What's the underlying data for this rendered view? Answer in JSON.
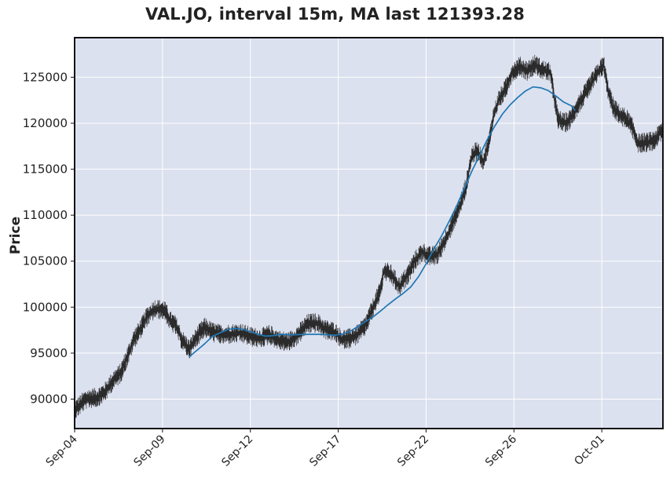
{
  "chart_data": {
    "type": "line",
    "title": "VAL.JO, interval 15m, MA last 121393.28",
    "ylabel": "Price",
    "xlabel": "",
    "ylim": [
      86800,
      129300
    ],
    "yticks": [
      90000,
      95000,
      100000,
      105000,
      110000,
      115000,
      120000,
      125000
    ],
    "xticks": [
      "Sep-04",
      "Sep-09",
      "Sep-12",
      "Sep-17",
      "Sep-22",
      "Sep-26",
      "Oct-01"
    ],
    "grid": true,
    "background": "#dce1ef",
    "price_color": "#2b2b2b",
    "ma_color": "#1f77b4",
    "price_series": {
      "name": "",
      "anchors": [
        [
          0,
          88800
        ],
        [
          6,
          90000
        ],
        [
          12,
          90200
        ],
        [
          16,
          90800
        ],
        [
          20,
          92000
        ],
        [
          24,
          92800
        ],
        [
          28,
          94800
        ],
        [
          31,
          96500
        ],
        [
          35,
          97800
        ],
        [
          38,
          99000
        ],
        [
          42,
          99800
        ],
        [
          47,
          99700
        ],
        [
          50,
          98500
        ],
        [
          53,
          98000
        ],
        [
          56,
          96500
        ],
        [
          60,
          95400
        ],
        [
          64,
          96800
        ],
        [
          68,
          97800
        ],
        [
          72,
          97300
        ],
        [
          77,
          97000
        ],
        [
          82,
          97100
        ],
        [
          87,
          97200
        ],
        [
          92,
          96800
        ],
        [
          97,
          96600
        ],
        [
          102,
          97000
        ],
        [
          107,
          96400
        ],
        [
          112,
          96200
        ],
        [
          117,
          97000
        ],
        [
          122,
          98200
        ],
        [
          127,
          98300
        ],
        [
          131,
          97600
        ],
        [
          136,
          97300
        ],
        [
          140,
          96500
        ],
        [
          144,
          96600
        ],
        [
          148,
          97000
        ],
        [
          152,
          97900
        ],
        [
          156,
          99800
        ],
        [
          160,
          101800
        ],
        [
          162,
          104000
        ],
        [
          166,
          103500
        ],
        [
          170,
          102200
        ],
        [
          174,
          103400
        ],
        [
          178,
          105000
        ],
        [
          182,
          106000
        ],
        [
          186,
          105500
        ],
        [
          190,
          105700
        ],
        [
          194,
          107300
        ],
        [
          198,
          109200
        ],
        [
          202,
          111200
        ],
        [
          205,
          113200
        ],
        [
          208,
          116500
        ],
        [
          211,
          117000
        ],
        [
          214,
          115800
        ],
        [
          217,
          118000
        ],
        [
          219,
          120500
        ],
        [
          222,
          122500
        ],
        [
          225,
          123500
        ],
        [
          229,
          125500
        ],
        [
          233,
          126200
        ],
        [
          237,
          125700
        ],
        [
          241,
          126400
        ],
        [
          245,
          125800
        ],
        [
          249,
          125500
        ],
        [
          251,
          123000
        ],
        [
          253,
          120500
        ],
        [
          256,
          120000
        ],
        [
          259,
          120300
        ],
        [
          262,
          121500
        ],
        [
          266,
          122800
        ],
        [
          270,
          124200
        ],
        [
          274,
          125500
        ],
        [
          277,
          126400
        ],
        [
          279,
          123800
        ],
        [
          282,
          121700
        ],
        [
          286,
          120800
        ],
        [
          289,
          120500
        ],
        [
          292,
          119500
        ],
        [
          295,
          117800
        ],
        [
          299,
          117900
        ],
        [
          302,
          118000
        ],
        [
          305,
          118500
        ],
        [
          308,
          119400
        ]
      ]
    },
    "ma_series": {
      "name": "",
      "anchors": [
        [
          60,
          94600
        ],
        [
          64,
          95300
        ],
        [
          68,
          96000
        ],
        [
          72,
          96800
        ],
        [
          76,
          97200
        ],
        [
          80,
          97550
        ],
        [
          84,
          97700
        ],
        [
          88,
          97600
        ],
        [
          92,
          97350
        ],
        [
          96,
          97050
        ],
        [
          100,
          96850
        ],
        [
          104,
          96900
        ],
        [
          108,
          97050
        ],
        [
          112,
          97000
        ],
        [
          116,
          97000
        ],
        [
          120,
          97050
        ],
        [
          124,
          97050
        ],
        [
          128,
          97050
        ],
        [
          132,
          97000
        ],
        [
          136,
          96950
        ],
        [
          140,
          97050
        ],
        [
          144,
          97350
        ],
        [
          148,
          97850
        ],
        [
          152,
          98400
        ],
        [
          156,
          98900
        ],
        [
          160,
          99550
        ],
        [
          164,
          100250
        ],
        [
          168,
          100900
        ],
        [
          172,
          101500
        ],
        [
          176,
          102200
        ],
        [
          180,
          103300
        ],
        [
          184,
          104700
        ],
        [
          188,
          106300
        ],
        [
          192,
          107700
        ],
        [
          196,
          109300
        ],
        [
          200,
          111000
        ],
        [
          204,
          112900
        ],
        [
          208,
          114800
        ],
        [
          212,
          116500
        ],
        [
          216,
          118200
        ],
        [
          220,
          119700
        ],
        [
          224,
          121000
        ],
        [
          228,
          122000
        ],
        [
          232,
          122800
        ],
        [
          236,
          123500
        ],
        [
          240,
          123950
        ],
        [
          244,
          123850
        ],
        [
          248,
          123550
        ],
        [
          252,
          122950
        ],
        [
          256,
          122300
        ],
        [
          260,
          121900
        ],
        [
          262,
          121393
        ]
      ]
    },
    "x_range": [
      0,
      308
    ],
    "x_tick_positions": [
      0,
      46,
      92,
      138,
      184,
      230,
      276
    ]
  }
}
